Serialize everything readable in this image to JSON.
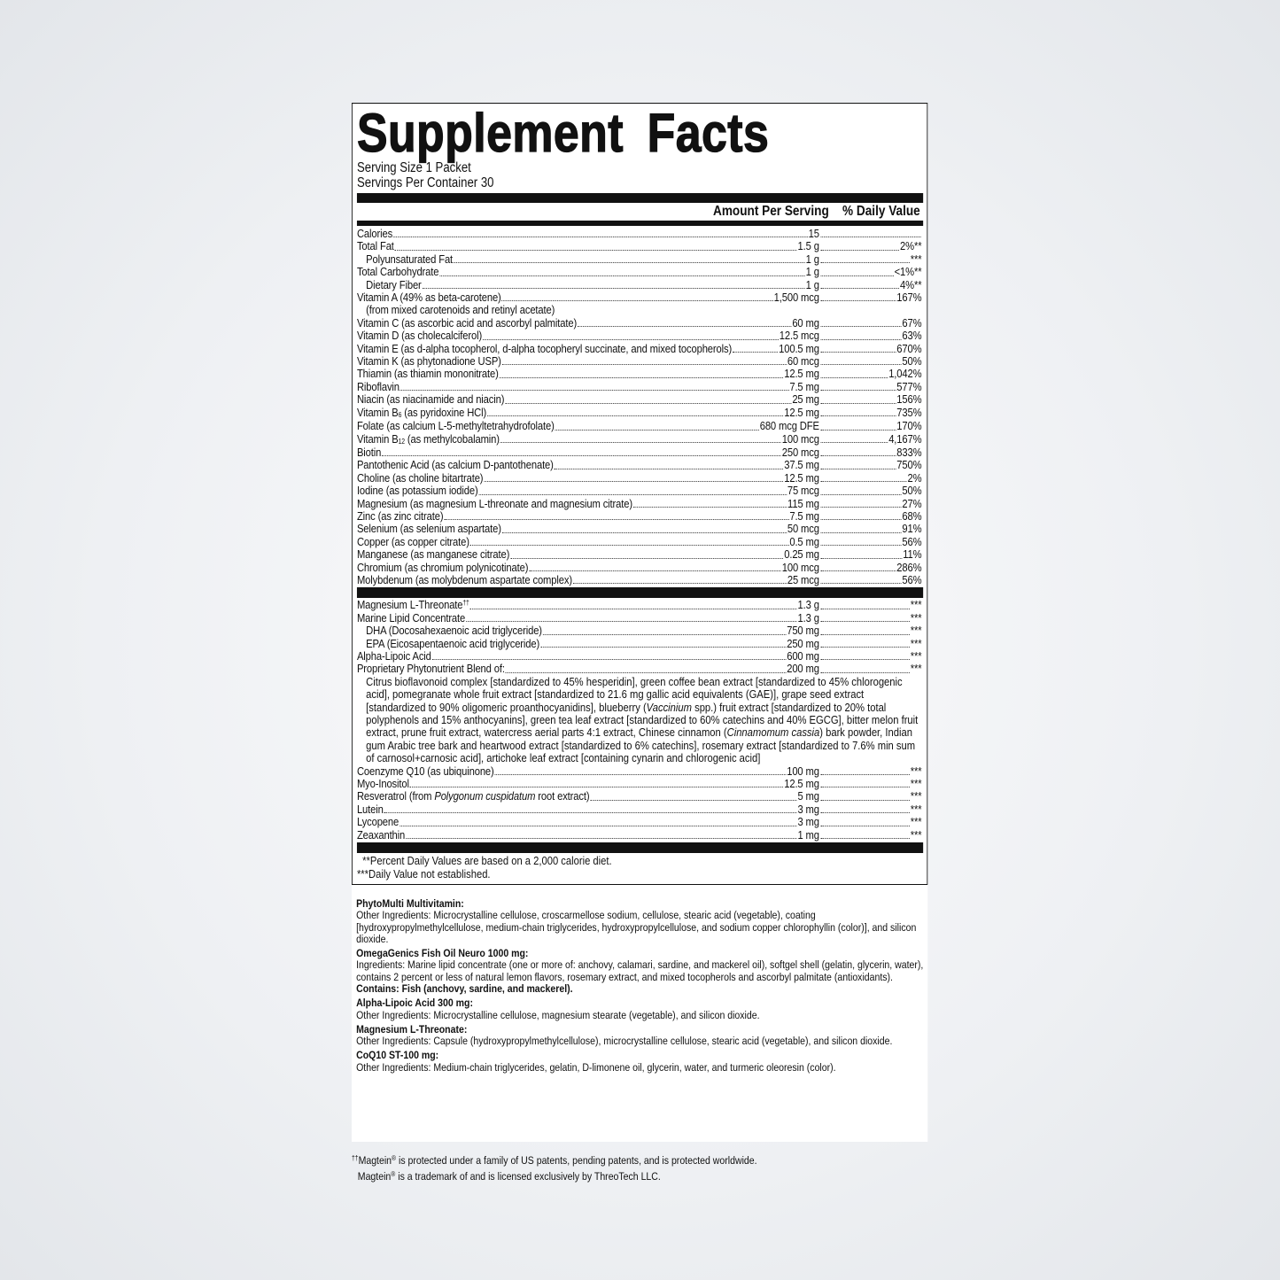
{
  "title": "Supplement Facts",
  "serving_size": "Serving Size 1 Packet",
  "servings_per_container": "Servings Per Container 30",
  "header": {
    "amount": "Amount Per Serving",
    "dv": "% Daily Value"
  },
  "rows": [
    {
      "name": "Calories",
      "amount": "15",
      "dv": ""
    },
    {
      "name": "Total Fat",
      "amount": "1.5 g",
      "dv": "2%**"
    },
    {
      "name": "Polyunsaturated Fat",
      "amount": "1 g",
      "dv": "***",
      "indent": true
    },
    {
      "name": "Total Carbohydrate",
      "amount": "1 g",
      "dv": "<1%**"
    },
    {
      "name": "Dietary Fiber",
      "amount": "1 g",
      "dv": "4%**",
      "indent": true
    },
    {
      "name": "Vitamin A (49% as beta-carotene)",
      "amount": "1,500 mcg",
      "dv": "167%",
      "cont": "(from mixed carotenoids and retinyl acetate)"
    },
    {
      "name": "Vitamin C (as ascorbic acid and ascorbyl palmitate)",
      "amount": "60 mg",
      "dv": "67%"
    },
    {
      "name": "Vitamin D (as cholecalciferol)",
      "amount": "12.5 mcg",
      "dv": "63%"
    },
    {
      "name": "Vitamin E (as d-alpha tocopherol, d-alpha tocopheryl succinate, and mixed tocopherols)",
      "amount": "100.5 mg",
      "dv": "670%"
    },
    {
      "name": "Vitamin K (as phytonadione USP)",
      "amount": "60 mcg",
      "dv": "50%"
    },
    {
      "name": "Thiamin (as thiamin mononitrate)",
      "amount": "12.5 mg",
      "dv": "1,042%"
    },
    {
      "name": "Riboflavin",
      "amount": "7.5 mg",
      "dv": "577%"
    },
    {
      "name": "Niacin (as niacinamide and niacin)",
      "amount": "25 mg",
      "dv": "156%"
    },
    {
      "name": "Vitamin B",
      "sub": "6",
      "post": " (as pyridoxine HCl)",
      "amount": "12.5 mg",
      "dv": "735%"
    },
    {
      "name": "Folate (as calcium L-5-methyltetrahydrofolate)",
      "amount": "680 mcg DFE",
      "dv": "170%"
    },
    {
      "name": "Vitamin B",
      "sub": "12",
      "post": " (as methylcobalamin)",
      "amount": "100 mcg",
      "dv": "4,167%"
    },
    {
      "name": "Biotin",
      "amount": "250 mcg",
      "dv": "833%"
    },
    {
      "name": "Pantothenic Acid (as calcium D-pantothenate)",
      "amount": "37.5 mg",
      "dv": "750%"
    },
    {
      "name": "Choline (as choline bitartrate)",
      "amount": "12.5 mg",
      "dv": "2%"
    },
    {
      "name": "Iodine (as potassium iodide)",
      "amount": "75 mcg",
      "dv": "50%"
    },
    {
      "name": "Magnesium (as magnesium L-threonate and magnesium citrate)",
      "amount": "115 mg",
      "dv": "27%"
    },
    {
      "name": "Zinc (as zinc citrate)",
      "amount": "7.5 mg",
      "dv": "68%"
    },
    {
      "name": "Selenium (as selenium aspartate)",
      "amount": "50 mcg",
      "dv": "91%"
    },
    {
      "name": "Copper (as copper citrate)",
      "amount": "0.5 mg",
      "dv": "56%"
    },
    {
      "name": "Manganese (as manganese citrate)",
      "amount": "0.25 mg",
      "dv": "11%"
    },
    {
      "name": "Chromium (as chromium polynicotinate)",
      "amount": "100 mcg",
      "dv": "286%"
    },
    {
      "name": "Molybdenum (as molybdenum aspartate complex)",
      "amount": "25 mcg",
      "dv": "56%"
    }
  ],
  "rows2": [
    {
      "name": "Magnesium L-Threonate",
      "sup": "††",
      "amount": "1.3 g",
      "dv": "***"
    },
    {
      "name": "Marine Lipid Concentrate",
      "amount": "1.3 g",
      "dv": "***"
    },
    {
      "name": "DHA (Docosahexaenoic acid triglyceride)",
      "amount": "750 mg",
      "dv": "***",
      "indent": true
    },
    {
      "name": "EPA (Eicosapentaenoic acid triglyceride)",
      "amount": "250 mg",
      "dv": "***",
      "indent": true
    },
    {
      "name": "Alpha-Lipoic Acid",
      "amount": "600 mg",
      "dv": "***"
    },
    {
      "name": "Proprietary Phytonutrient Blend of:",
      "amount": "200 mg",
      "dv": "***"
    }
  ],
  "blend": [
    {
      "t": "Citrus bioflavonoid complex [standardized to 45% hesperidin], green coffee bean extract [standardized to 45% chlorogenic acid], pomegranate whole fruit extract [standardized to 21.6 mg gallic acid equivalents (GAE)], grape seed extract [standardized to 90% oligomeric proanthocyanidins], blueberry ("
    },
    {
      "t": "Vaccinium",
      "i": true
    },
    {
      "t": " spp.) fruit extract [standardized to 20% total polyphenols and 15% anthocyanins], green tea leaf extract [standardized to 60% catechins and 40% EGCG], bitter melon fruit extract, prune fruit extract, watercress aerial parts 4:1 extract, Chinese cinnamon ("
    },
    {
      "t": "Cinnamomum cassia",
      "i": true
    },
    {
      "t": ") bark powder, Indian gum Arabic tree bark and heartwood extract [standardized to 6% catechins], rosemary extract [standardized to 7.6% min sum of carnosol+carnosic acid], artichoke leaf extract [containing cynarin and chlorogenic acid]"
    }
  ],
  "rows3": [
    {
      "name": "Coenzyme Q10 (as ubiquinone)",
      "amount": "100 mg",
      "dv": "***"
    },
    {
      "name": "Myo-Inositol",
      "amount": "12.5 mg",
      "dv": "***"
    },
    {
      "name": "Resveratrol (from ",
      "ital": "Polygonum cuspidatum",
      "post": " root extract)",
      "amount": "5 mg",
      "dv": "***"
    },
    {
      "name": "Lutein",
      "amount": "3 mg",
      "dv": "***"
    },
    {
      "name": "Lycopene",
      "amount": "3 mg",
      "dv": "***"
    },
    {
      "name": "Zeaxanthin",
      "amount": "1 mg",
      "dv": "***"
    }
  ],
  "notes": [
    "  **Percent Daily Values are based on a 2,000 calorie diet.",
    "***Daily Value not established."
  ],
  "ingredients": [
    {
      "heading": "PhytoMulti Multivitamin:",
      "text": "Other Ingredients: Microcrystalline cellulose, croscarmellose sodium, cellulose, stearic acid (vegetable), coating [hydroxypropylmethylcellulose, medium-chain triglycerides, hydroxypropylcellulose, and sodium copper chlorophyllin (color)], and silicon dioxide."
    },
    {
      "heading": "OmegaGenics Fish Oil Neuro 1000 mg:",
      "text": "Ingredients: Marine lipid concentrate (one or more of: anchovy, calamari, sardine, and mackerel oil), softgel shell (gelatin, glycerin, water), contains 2 percent or less of natural lemon flavors, rosemary extract, and mixed tocopherols and ascorbyl palmitate (antioxidants). ",
      "bold_tail": "Contains: Fish (anchovy, sardine, and mackerel)."
    },
    {
      "heading": "Alpha-Lipoic Acid 300 mg:",
      "text": "Other Ingredients: Microcrystalline cellulose, magnesium stearate (vegetable), and silicon dioxide."
    },
    {
      "heading": "Magnesium L-Threonate:",
      "text": "Other Ingredients: Capsule (hydroxypropylmethylcellulose), microcrystalline cellulose, stearic acid (vegetable), and silicon dioxide."
    },
    {
      "heading": "CoQ10 ST-100 mg:",
      "text": "Other Ingredients: Medium-chain triglycerides, gelatin, D-limonene oil, glycerin, water, and turmeric oleoresin (color)."
    }
  ],
  "footnotes": [
    {
      "sup": "††",
      "brand": "Magtein",
      "reg": "®",
      "text": " is protected under a family of US patents, pending patents, and is protected worldwide."
    },
    {
      "sup": "",
      "brand": "Magtein",
      "reg": "®",
      "text": " is a trademark of and is licensed exclusively by ThreoTech LLC."
    }
  ]
}
